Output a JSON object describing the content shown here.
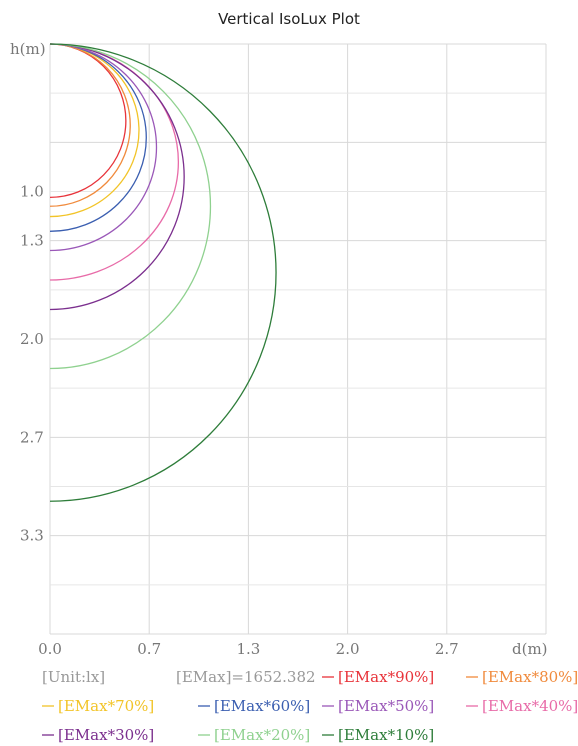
{
  "chart_data": {
    "type": "line",
    "title": "Vertical IsoLux Plot",
    "ylabel": "h(m)",
    "xlabel": "d(m)",
    "x_ticks": [
      "0.0",
      "0.7",
      "1.3",
      "2.0",
      "2.7"
    ],
    "y_ticks": [
      "1.0",
      "1.3",
      "2.0",
      "2.7",
      "3.3"
    ],
    "xlim": [
      0,
      3.4
    ],
    "ylim": [
      0,
      4.0
    ],
    "grid": true,
    "unit_label": "[Unit:lx]",
    "emax_label": "[EMax]=1652.382",
    "series": [
      {
        "name": "[EMax*90%]",
        "color": "#e8333a",
        "max_d": 0.52,
        "depth": 1.04
      },
      {
        "name": "[EMax*80%]",
        "color": "#f08a3c",
        "max_d": 0.55,
        "depth": 1.1
      },
      {
        "name": "[EMax*70%]",
        "color": "#f2c428",
        "max_d": 0.61,
        "depth": 1.17
      },
      {
        "name": "[EMax*60%]",
        "color": "#3a5eb0",
        "max_d": 0.66,
        "depth": 1.27
      },
      {
        "name": "[EMax*50%]",
        "color": "#9a58b8",
        "max_d": 0.73,
        "depth": 1.4
      },
      {
        "name": "[EMax*40%]",
        "color": "#e86ba8",
        "max_d": 0.88,
        "depth": 1.6
      },
      {
        "name": "[EMax*30%]",
        "color": "#7b2f8e",
        "max_d": 0.92,
        "depth": 1.8
      },
      {
        "name": "[EMax*20%]",
        "color": "#8fd18f",
        "max_d": 1.1,
        "depth": 2.2
      },
      {
        "name": "[EMax*10%]",
        "color": "#2e7d3a",
        "max_d": 1.55,
        "depth": 3.1
      }
    ]
  }
}
